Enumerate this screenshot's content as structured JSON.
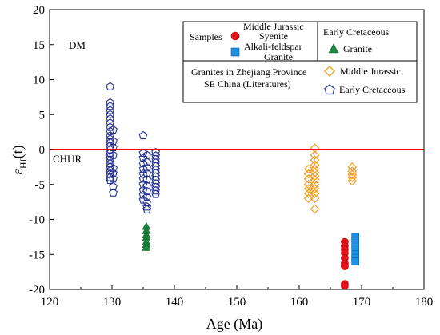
{
  "chart_data": {
    "type": "scatter",
    "xlabel": "Age (Ma)",
    "ylabel_main": "ε",
    "ylabel_sub": "Hf",
    "ylabel_tail": "(t)",
    "xlim": [
      120,
      180
    ],
    "ylim": [
      -20,
      20
    ],
    "x_ticks": [
      120,
      130,
      140,
      150,
      160,
      170,
      180
    ],
    "y_ticks": [
      20,
      15,
      10,
      5,
      0,
      -5,
      -10,
      -15,
      -20
    ],
    "reference_line": {
      "y": 0,
      "color": "#ff0000"
    },
    "annotations": {
      "dm": "DM",
      "chur": "CHUR"
    },
    "legend": {
      "samples_label": "Samples",
      "middle_jurassic_title": "Middle Jurassic",
      "syenite": "Syenite",
      "alkali_feldspar": "Alkali-feldspar",
      "granite_word": "Granite",
      "early_cretaceous_title": "Early Cretaceous",
      "ec_granite": "Granite",
      "lit_line1": "Granites in Zhejiang Province",
      "lit_line2": "SE China (Literatures)",
      "lit_mj": "Middle Jurassic",
      "lit_ec": "Early Cretaceous"
    },
    "series": [
      {
        "name": "Syenite",
        "marker": "circle",
        "color": "#e8141b",
        "points": [
          [
            167.3,
            -13.2
          ],
          [
            167.3,
            -13.8
          ],
          [
            167.3,
            -14.3
          ],
          [
            167.3,
            -14.8
          ],
          [
            167.3,
            -15.5
          ],
          [
            167.3,
            -16.3
          ],
          [
            167.3,
            -16.7
          ],
          [
            167.3,
            -19.2
          ],
          [
            167.3,
            -19.5
          ]
        ]
      },
      {
        "name": "Alkali-feldspar Granite",
        "marker": "square",
        "color": "#1e90e6",
        "points": [
          [
            169.0,
            -12.5
          ],
          [
            169.0,
            -13.0
          ],
          [
            169.0,
            -13.6
          ],
          [
            169.0,
            -14.2
          ],
          [
            169.0,
            -15.0
          ],
          [
            169.0,
            -15.5
          ],
          [
            169.0,
            -16.0
          ]
        ]
      },
      {
        "name": "Granite",
        "marker": "triangle",
        "color": "#1a8c3c",
        "points": [
          [
            135.5,
            -11.0
          ],
          [
            135.5,
            -11.6
          ],
          [
            135.5,
            -12.2
          ],
          [
            135.5,
            -12.6
          ],
          [
            135.5,
            -13.2
          ],
          [
            135.5,
            -13.6
          ],
          [
            135.5,
            -14.0
          ]
        ]
      },
      {
        "name": "Middle Jurassic",
        "marker": "diamond",
        "color": "#f39a1e",
        "points": [
          [
            162.5,
            0.2
          ],
          [
            162.5,
            -0.8
          ],
          [
            162.5,
            -1.5
          ],
          [
            162.5,
            -2.2
          ],
          [
            162.5,
            -2.8
          ],
          [
            162.5,
            -3.3
          ],
          [
            162.5,
            -3.8
          ],
          [
            162.5,
            -4.3
          ],
          [
            162.5,
            -5.0
          ],
          [
            162.5,
            -5.6
          ],
          [
            162.5,
            -6.3
          ],
          [
            162.5,
            -7.0
          ],
          [
            162.5,
            -8.5
          ],
          [
            161.5,
            -2.8
          ],
          [
            161.5,
            -3.5
          ],
          [
            161.5,
            -4.2
          ],
          [
            161.5,
            -5.0
          ],
          [
            161.5,
            -5.6
          ],
          [
            161.5,
            -6.3
          ],
          [
            161.5,
            -7.0
          ],
          [
            168.5,
            -2.5
          ],
          [
            168.5,
            -3.1
          ],
          [
            168.5,
            -3.6
          ],
          [
            168.5,
            -4.0
          ],
          [
            168.5,
            -4.5
          ]
        ]
      },
      {
        "name": "Early Cretaceous",
        "marker": "pentagon",
        "color": "#283592",
        "points": [
          [
            129.7,
            9.0
          ],
          [
            129.7,
            6.7
          ],
          [
            129.7,
            6.2
          ],
          [
            129.7,
            5.6
          ],
          [
            129.7,
            5.0
          ],
          [
            129.7,
            4.4
          ],
          [
            129.7,
            3.8
          ],
          [
            129.7,
            3.2
          ],
          [
            129.7,
            2.6
          ],
          [
            129.7,
            2.0
          ],
          [
            129.7,
            1.5
          ],
          [
            129.7,
            1.0
          ],
          [
            129.7,
            0.5
          ],
          [
            129.7,
            0.0
          ],
          [
            129.7,
            -0.5
          ],
          [
            129.7,
            -1.0
          ],
          [
            129.7,
            -1.5
          ],
          [
            129.7,
            -2.0
          ],
          [
            129.7,
            -2.5
          ],
          [
            129.7,
            -3.0
          ],
          [
            129.7,
            -3.5
          ],
          [
            129.7,
            -4.0
          ],
          [
            129.7,
            -4.4
          ],
          [
            130.2,
            2.8
          ],
          [
            130.2,
            1.2
          ],
          [
            130.2,
            0.3
          ],
          [
            130.2,
            -0.8
          ],
          [
            130.2,
            -2.7
          ],
          [
            130.2,
            -3.4
          ],
          [
            130.2,
            -4.2
          ],
          [
            130.2,
            -5.3
          ],
          [
            130.2,
            -6.2
          ],
          [
            135.0,
            2.0
          ],
          [
            135.0,
            -0.5
          ],
          [
            135.0,
            -1.2
          ],
          [
            135.0,
            -2.0
          ],
          [
            135.0,
            -2.8
          ],
          [
            135.0,
            -3.5
          ],
          [
            135.0,
            -4.2
          ],
          [
            135.0,
            -5.0
          ],
          [
            135.0,
            -5.8
          ],
          [
            135.0,
            -6.5
          ],
          [
            135.0,
            -7.2
          ],
          [
            135.6,
            -0.8
          ],
          [
            135.6,
            -1.8
          ],
          [
            135.6,
            -2.6
          ],
          [
            135.6,
            -3.4
          ],
          [
            135.6,
            -4.3
          ],
          [
            135.6,
            -5.2
          ],
          [
            135.6,
            -6.0
          ],
          [
            135.6,
            -6.8
          ],
          [
            135.6,
            -7.6
          ],
          [
            135.6,
            -8.2
          ],
          [
            135.6,
            -8.6
          ],
          [
            137.0,
            -0.4
          ],
          [
            137.0,
            -0.9
          ],
          [
            137.0,
            -1.4
          ],
          [
            137.0,
            -1.9
          ],
          [
            137.0,
            -2.4
          ],
          [
            137.0,
            -2.9
          ],
          [
            137.0,
            -3.4
          ],
          [
            137.0,
            -3.9
          ],
          [
            137.0,
            -4.4
          ],
          [
            137.0,
            -4.9
          ],
          [
            137.0,
            -5.4
          ],
          [
            137.0,
            -5.9
          ],
          [
            137.0,
            -6.4
          ]
        ]
      }
    ]
  }
}
